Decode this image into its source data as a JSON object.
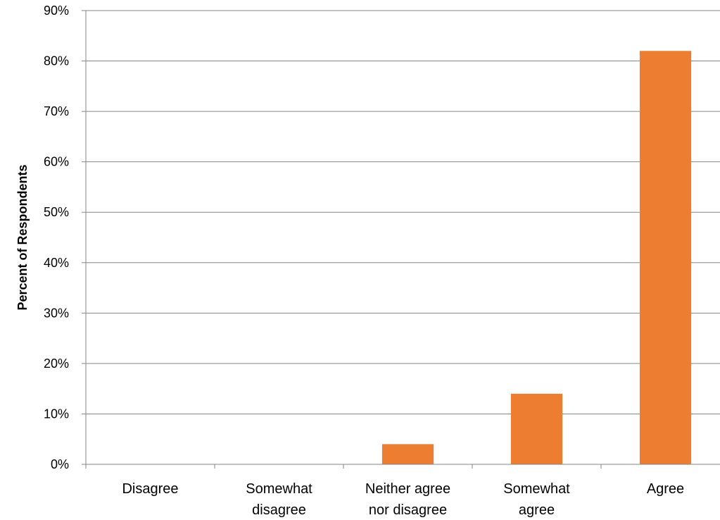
{
  "chart_data": {
    "type": "bar",
    "categories": [
      [
        "Disagree"
      ],
      [
        "Somewhat",
        "disagree"
      ],
      [
        "Neither agree",
        "nor disagree"
      ],
      [
        "Somewhat",
        "agree"
      ],
      [
        "Agree"
      ]
    ],
    "values": [
      0,
      0,
      4,
      14,
      82
    ],
    "ylabel": "Percent of Respondents",
    "ylim": [
      0,
      90
    ],
    "yticks": [
      "0%",
      "10%",
      "20%",
      "30%",
      "40%",
      "50%",
      "60%",
      "70%",
      "80%",
      "90%"
    ],
    "grid": true,
    "bar_color": "#ED7D31",
    "grid_color": "#868686",
    "axis_color": "#868686"
  }
}
